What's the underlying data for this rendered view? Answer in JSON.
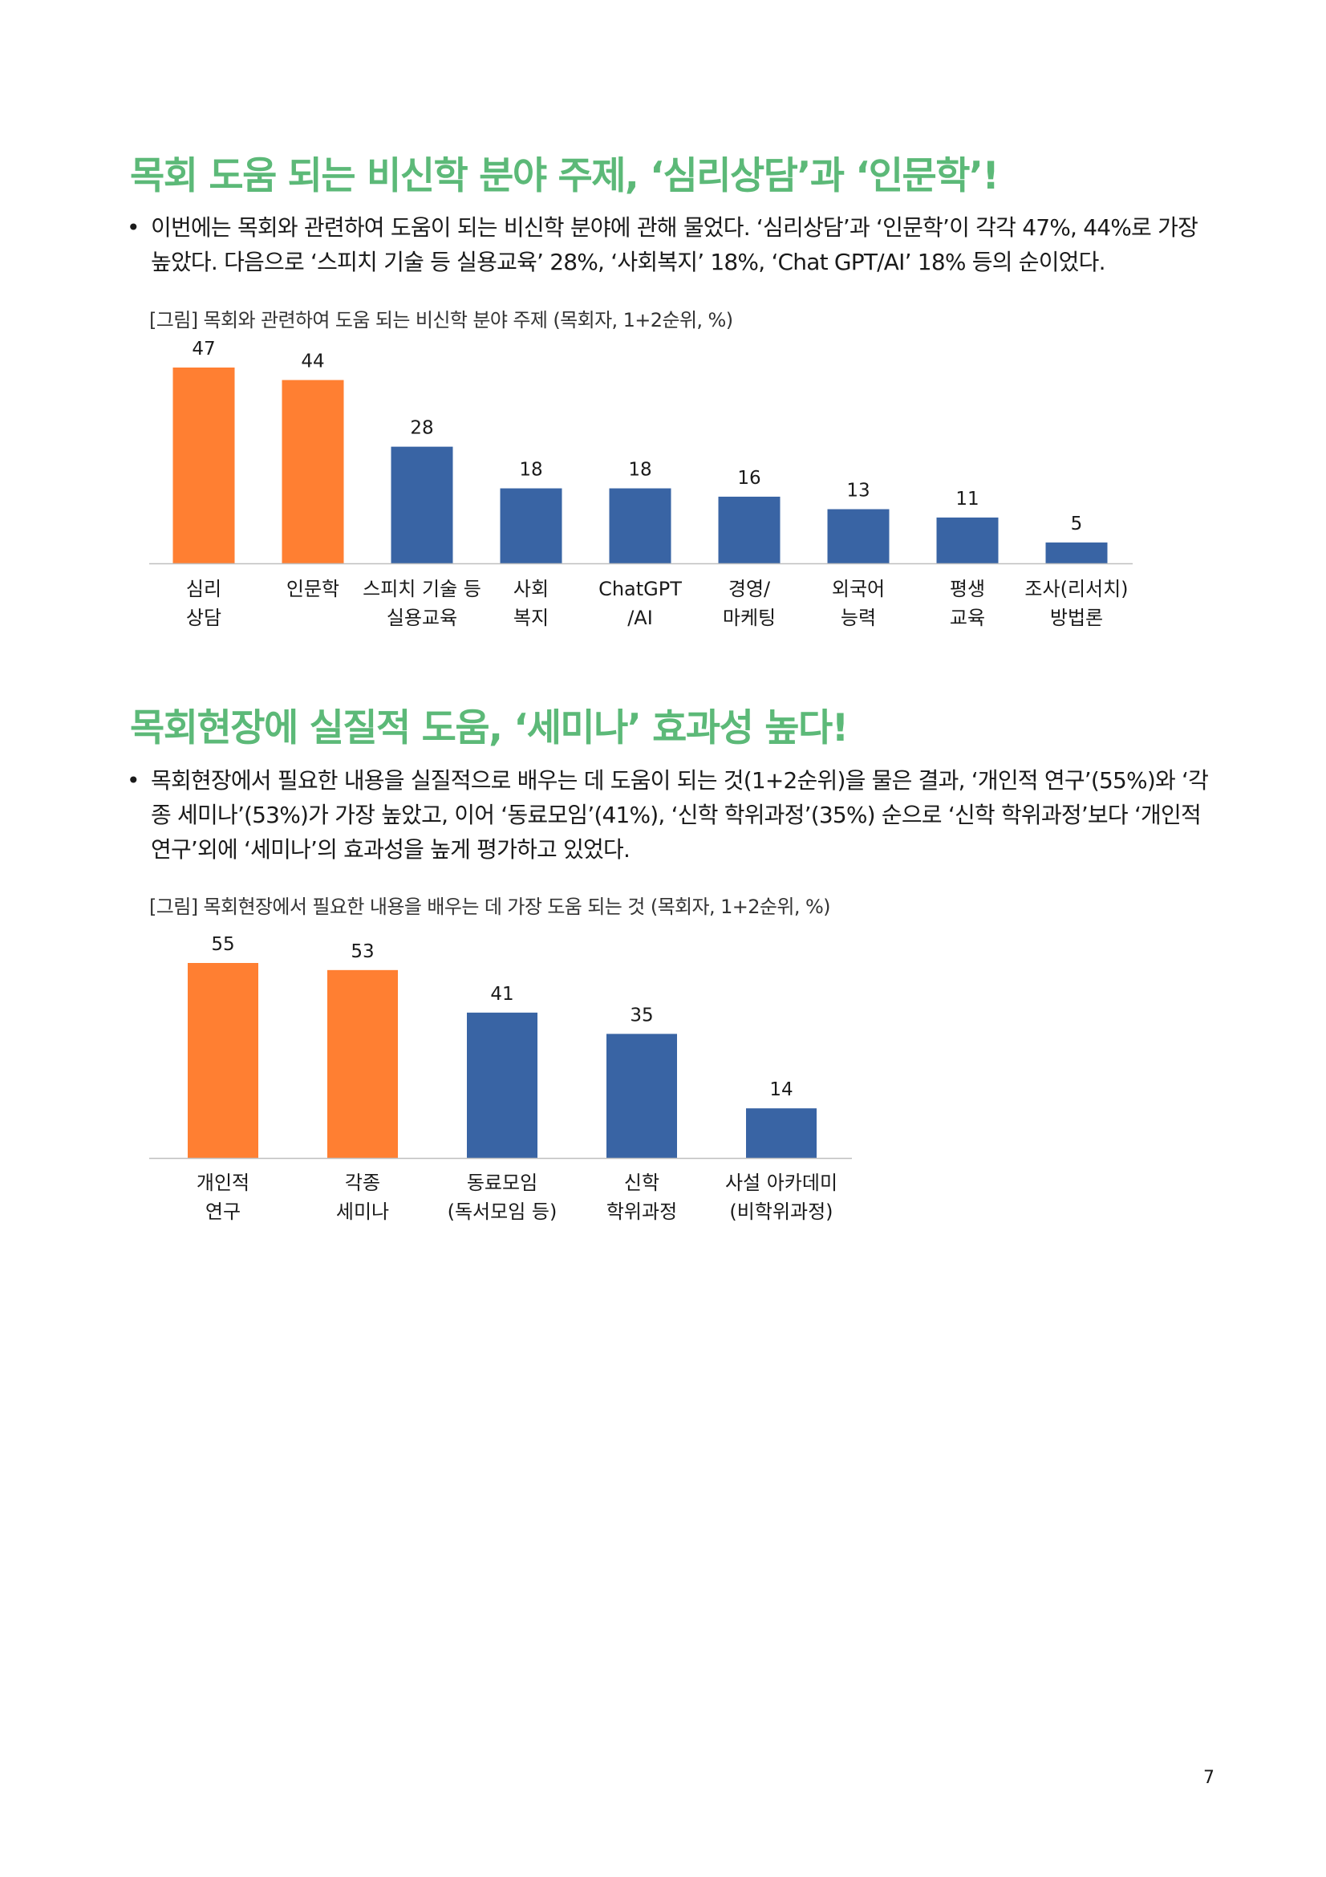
{
  "section1": {
    "title": "목회 도움 되는 비신학 분야 주제, ‘심리상담’과 ‘인문학’!",
    "bullet": "•",
    "paragraph": "이번에는 목회와 관련하여 도움이 되는 비신학 분야에 관해 물었다. ‘심리상담’과 ‘인문학’이 각각 47%, 44%로 가장 높았다. 다음으로 ‘스피치 기술 등 실용교육’ 28%, ‘사회복지’ 18%, ‘Chat GPT/AI’ 18% 등의 순이었다.",
    "figure_caption": "[그림] 목회와 관련하여 도움 되는 비신학 분야 주제 (목회자, 1+2순위, %)"
  },
  "section2": {
    "title": "목회현장에 실질적 도움, ‘세미나’ 효과성 높다!",
    "bullet": "•",
    "paragraph": "목회현장에서 필요한 내용을 실질적으로 배우는 데 도움이 되는 것(1+2순위)을 물은 결과, ‘개인적 연구’(55%)와 ‘각종 세미나’(53%)가 가장 높았고, 이어 ‘동료모임’(41%), ‘신학 학위과정’(35%) 순으로 ‘신학 학위과정’보다 ‘개인적 연구’외에 ‘세미나’의 효과성을 높게 평가하고 있었다.",
    "figure_caption": "[그림] 목회현장에서 필요한 내용을 배우는 데 가장 도움 되는 것 (목회자, 1+2순위, %)"
  },
  "chart_data": [
    {
      "type": "bar",
      "categories": [
        [
          "심리",
          "상담"
        ],
        [
          "인문학"
        ],
        [
          "스피치 기술 등",
          "실용교육"
        ],
        [
          "사회",
          "복지"
        ],
        [
          "ChatGPT",
          "/AI"
        ],
        [
          "경영/",
          "마케팅"
        ],
        [
          "외국어",
          "능력"
        ],
        [
          "평생",
          "교육"
        ],
        [
          "조사(리서치)",
          "방법론"
        ]
      ],
      "values": [
        47,
        44,
        28,
        18,
        18,
        16,
        13,
        11,
        5
      ],
      "highlight_count": 2,
      "colors": {
        "highlight": "#ff7f32",
        "normal": "#3964a4",
        "axis": "#bfbfbf"
      },
      "ylim": [
        0,
        47
      ],
      "grid": false,
      "legend": "none"
    },
    {
      "type": "bar",
      "categories": [
        [
          "개인적",
          "연구"
        ],
        [
          "각종",
          "세미나"
        ],
        [
          "동료모임",
          "(독서모임 등)"
        ],
        [
          "신학",
          "학위과정"
        ],
        [
          "사설 아카데미",
          "(비학위과정)"
        ]
      ],
      "values": [
        55,
        53,
        41,
        35,
        14
      ],
      "highlight_count": 2,
      "colors": {
        "highlight": "#ff7f32",
        "normal": "#3964a4",
        "axis": "#bfbfbf"
      },
      "ylim": [
        0,
        55
      ],
      "grid": false,
      "legend": "none"
    }
  ],
  "page_number": "7"
}
